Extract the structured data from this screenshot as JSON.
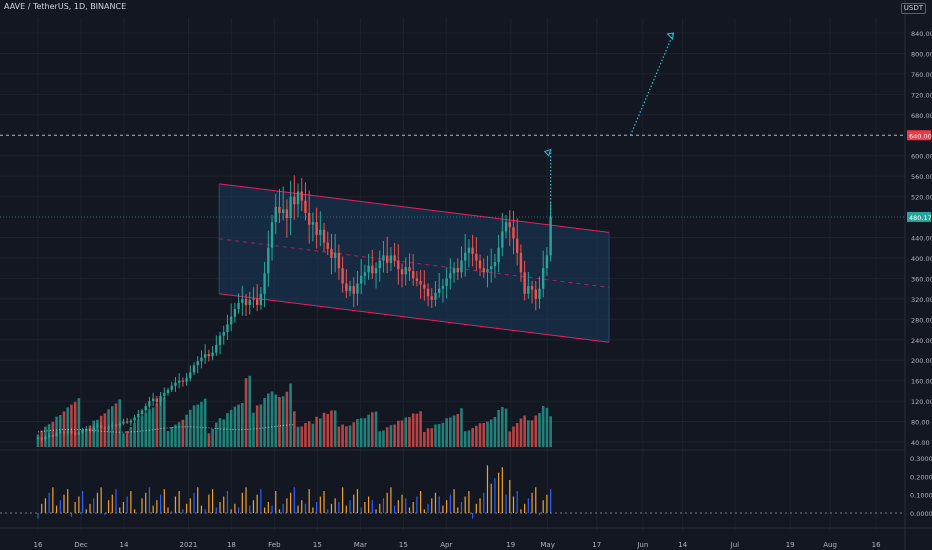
{
  "header": {
    "symbol": "AAVE / TetherUS, 1D, BINANCE",
    "currency": "USDT"
  },
  "colors": {
    "up": "#26a69a",
    "down": "#ef5350",
    "channel_line": "#e91e63",
    "channel_fill": "#1a3a5c",
    "projection": "#26c6da",
    "osc_up": "#f0a030",
    "osc_down": "#2962ff",
    "marker_640": "#f23645",
    "marker_last": "#26a69a"
  },
  "chart_data": {
    "type": "candlestick",
    "x_ticks": [
      "16",
      "Dec",
      "14",
      "2021",
      "18",
      "Feb",
      "15",
      "Mar",
      "15",
      "Apr",
      "19",
      "May",
      "17",
      "Jun",
      "14",
      "Jul",
      "19",
      "Aug",
      "16"
    ],
    "y_ticks": [
      "840.00",
      "800.00",
      "760.00",
      "720.00",
      "680.00",
      "600.00",
      "560.00",
      "520.00",
      "440.00",
      "400.00",
      "360.00",
      "320.00",
      "280.00",
      "240.00",
      "200.00",
      "160.00",
      "120.00",
      "80.00",
      "40.00"
    ],
    "ylim": [
      30,
      870
    ],
    "horizontal_line": 640,
    "horizontal_label": "640.00",
    "last_price": 480.17,
    "last_price_label": "480.17",
    "channel": {
      "upper_start": 545,
      "upper_end": 450,
      "lower_start": 330,
      "lower_end": 235,
      "start_date": "2021-01-14",
      "end_date": "2021-05-21"
    },
    "projection_points": [
      [
        478,
        612
      ],
      [
        640,
        840
      ]
    ],
    "closes": [
      48,
      45,
      50,
      53,
      52,
      58,
      60,
      57,
      62,
      58,
      55,
      59,
      64,
      66,
      62,
      70,
      72,
      68,
      66,
      70,
      74,
      71,
      76,
      80,
      78,
      82,
      88,
      95,
      102,
      110,
      120,
      125,
      118,
      130,
      136,
      142,
      150,
      156,
      160,
      158,
      165,
      176,
      190,
      198,
      205,
      212,
      208,
      215,
      230,
      248,
      255,
      270,
      285,
      300,
      312,
      320,
      308,
      318,
      320,
      308,
      330,
      370,
      420,
      470,
      500,
      488,
      495,
      478,
      520,
      505,
      530,
      512,
      488,
      465,
      470,
      445,
      455,
      430,
      418,
      400,
      410,
      380,
      350,
      335,
      345,
      330,
      350,
      365,
      372,
      385,
      370,
      380,
      395,
      405,
      390,
      405,
      395,
      378,
      368,
      382,
      374,
      360,
      355,
      348,
      340,
      325,
      318,
      332,
      340,
      345,
      360,
      370,
      380,
      372,
      395,
      410,
      420,
      408,
      395,
      380,
      372,
      378,
      384,
      392,
      420,
      452,
      470,
      460,
      438,
      410,
      372,
      330,
      345,
      338,
      320,
      340,
      380,
      405,
      480
    ]
  },
  "oscillator": {
    "y_ticks": [
      "0.3000",
      "0.2000",
      "0.1000",
      "0.0000"
    ],
    "ylim": [
      -0.05,
      0.32
    ]
  }
}
